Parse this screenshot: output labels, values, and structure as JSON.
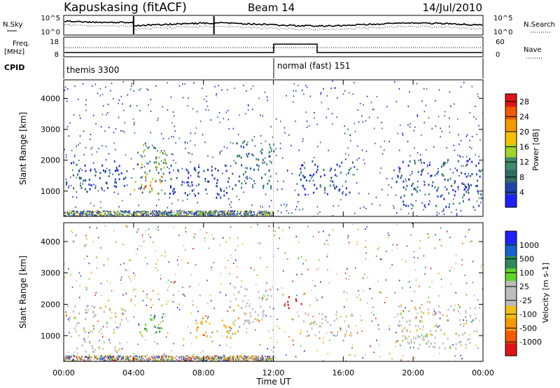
{
  "header": {
    "station": "Kapuskasing (fitACF)",
    "beam": "Beam 14",
    "date": "14/Jul/2010"
  },
  "info_panels": {
    "n_sky_label": "N.Sky",
    "n_search_label": "N.Search",
    "n_ticks": [
      "10^5",
      "10^0"
    ],
    "n_ticks_right": [
      "10^5",
      "10^0"
    ],
    "freq_label_1": "Freq.",
    "freq_label_2": "[MHz]",
    "freq_ticks": [
      "18",
      "8"
    ],
    "nave_label": "Nave",
    "nave_ticks": [
      "60",
      "0"
    ],
    "cpid_label": "CPID",
    "cpid_modes": [
      {
        "name": "themis 3300",
        "start": "00:00",
        "end": "12:00"
      },
      {
        "name": "normal (fast) 151",
        "start": "12:00",
        "end": "24:00"
      }
    ]
  },
  "colors": {
    "power_scale": [
      "#1f1fff",
      "#1e46a8",
      "#2f6e62",
      "#3f8c6d",
      "#9fd42d",
      "#f3c200",
      "#f39a00",
      "#f05a00",
      "#e01515"
    ],
    "velocity_scale": [
      "#e01515",
      "#f35a00",
      "#f39a00",
      "#f0c01a",
      "#bdbdbd",
      "#bdbdbd",
      "#5fd32a",
      "#2f8a57",
      "#1a5fd0",
      "#1f1fff"
    ]
  },
  "chart_data": [
    {
      "type": "heatmap",
      "panel": "power",
      "xlabel": "Time UT",
      "ylabel": "Slant Range [km]",
      "x_ticks": [
        "00:00",
        "04:00",
        "08:00",
        "12:00",
        "16:00",
        "20:00",
        "00:00"
      ],
      "y_ticks": [
        "1000",
        "2000",
        "3000",
        "4000"
      ],
      "xlim": [
        "00:00",
        "24:00"
      ],
      "ylim": [
        180,
        4600
      ],
      "colorbar_label": "Power [dB]",
      "colorbar_ticks": [
        "4",
        "8",
        "12",
        "16",
        "20",
        "24",
        "28"
      ],
      "colorbar_range": [
        0,
        30
      ],
      "features": [
        {
          "t_start": 0.1,
          "t_end": 3.6,
          "r_low": 1000,
          "r_high": 2000,
          "value_db": 5
        },
        {
          "t_start": 4.0,
          "t_end": 5.8,
          "r_low": 900,
          "r_high": 2600,
          "value_db": 12
        },
        {
          "t_start": 4.5,
          "t_end": 5.6,
          "r_low": 1100,
          "r_high": 1600,
          "value_db": 22
        },
        {
          "t_start": 6.0,
          "t_end": 9.5,
          "r_low": 800,
          "r_high": 1900,
          "value_db": 5
        },
        {
          "t_start": 9.6,
          "t_end": 12.0,
          "r_low": 1100,
          "r_high": 2700,
          "value_db": 8
        },
        {
          "t_start": 13.4,
          "t_end": 16.6,
          "r_low": 900,
          "r_high": 2000,
          "value_db": 6
        },
        {
          "t_start": 19.0,
          "t_end": 24.0,
          "r_low": 500,
          "r_high": 2100,
          "value_db": 6
        }
      ]
    },
    {
      "type": "heatmap",
      "panel": "velocity",
      "xlabel": "Time UT",
      "ylabel": "Slant Range [km]",
      "x_ticks": [
        "00:00",
        "04:00",
        "08:00",
        "12:00",
        "16:00",
        "20:00",
        "00:00"
      ],
      "y_ticks": [
        "1000",
        "2000",
        "3000",
        "4000"
      ],
      "xlim": [
        "00:00",
        "24:00"
      ],
      "ylim": [
        180,
        4600
      ],
      "colorbar_label": "Velocity [m s-1]",
      "colorbar_ticks": [
        "1000",
        "500",
        "100",
        "25",
        "-25",
        "-100",
        "-500",
        "-1000"
      ],
      "features": [
        {
          "t_start": 0.1,
          "t_end": 3.6,
          "r_low": 1100,
          "r_high": 2000,
          "value_ms": 0
        },
        {
          "t_start": 0.5,
          "t_end": 3.2,
          "r_low": 400,
          "r_high": 900,
          "value_ms": 0
        },
        {
          "t_start": 4.0,
          "t_end": 5.8,
          "r_low": 1100,
          "r_high": 1700,
          "value_ms": 150
        },
        {
          "t_start": 7.5,
          "t_end": 10.0,
          "r_low": 900,
          "r_high": 1600,
          "value_ms": -150
        },
        {
          "t_start": 9.6,
          "t_end": 12.0,
          "r_low": 1400,
          "r_high": 2600,
          "value_ms": 0
        },
        {
          "t_start": 12.6,
          "t_end": 13.8,
          "r_low": 1900,
          "r_high": 2300,
          "value_ms": -900
        },
        {
          "t_start": 13.4,
          "t_end": 16.6,
          "r_low": 1000,
          "r_high": 1800,
          "value_ms": 0
        },
        {
          "t_start": 19.0,
          "t_end": 24.0,
          "r_low": 600,
          "r_high": 2000,
          "value_ms": 0
        }
      ]
    }
  ]
}
